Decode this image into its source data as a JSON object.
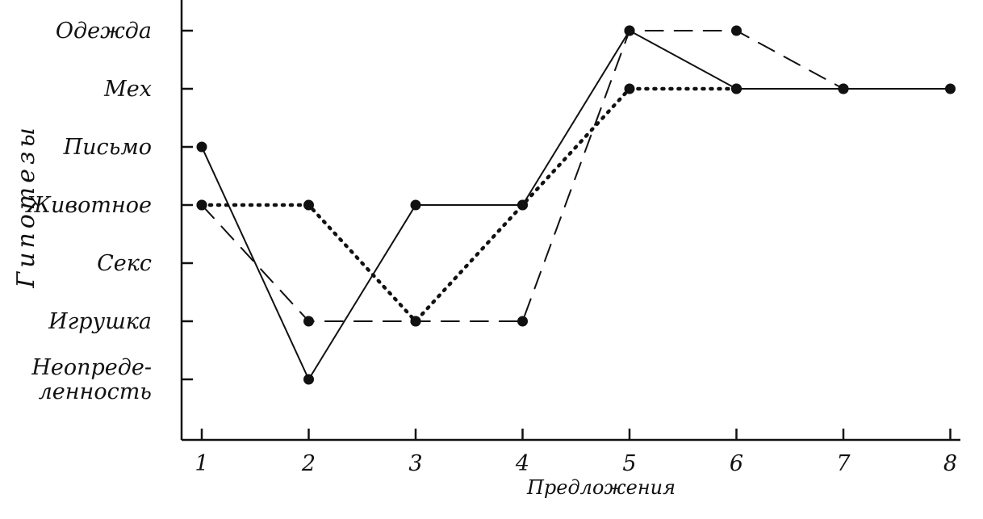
{
  "chart_data": {
    "type": "line",
    "title": "",
    "xlabel": "Предложения",
    "ylabel": "Гипотезы",
    "x": [
      1,
      2,
      3,
      4,
      5,
      6,
      7,
      8
    ],
    "categories_y": [
      {
        "lines": [
          "Неопреде-",
          "ленность"
        ]
      },
      {
        "lines": [
          "Игрушка"
        ]
      },
      {
        "lines": [
          "Секс"
        ]
      },
      {
        "lines": [
          "Животное"
        ]
      },
      {
        "lines": [
          "Письмо"
        ]
      },
      {
        "lines": [
          "Мех"
        ]
      },
      {
        "lines": [
          "Одежда"
        ]
      }
    ],
    "series": [
      {
        "style": "solid",
        "values": [
          4,
          0,
          3,
          3,
          6,
          5,
          5,
          5
        ]
      },
      {
        "style": "dashed",
        "values": [
          3,
          1,
          1,
          1,
          6,
          6,
          5,
          null
        ]
      },
      {
        "style": "dotted",
        "values": [
          3,
          3,
          1,
          3,
          5,
          5,
          null,
          null
        ]
      }
    ],
    "grid": false,
    "legend": "none",
    "colors": {
      "ink": "#111111",
      "background": "#ffffff"
    }
  }
}
